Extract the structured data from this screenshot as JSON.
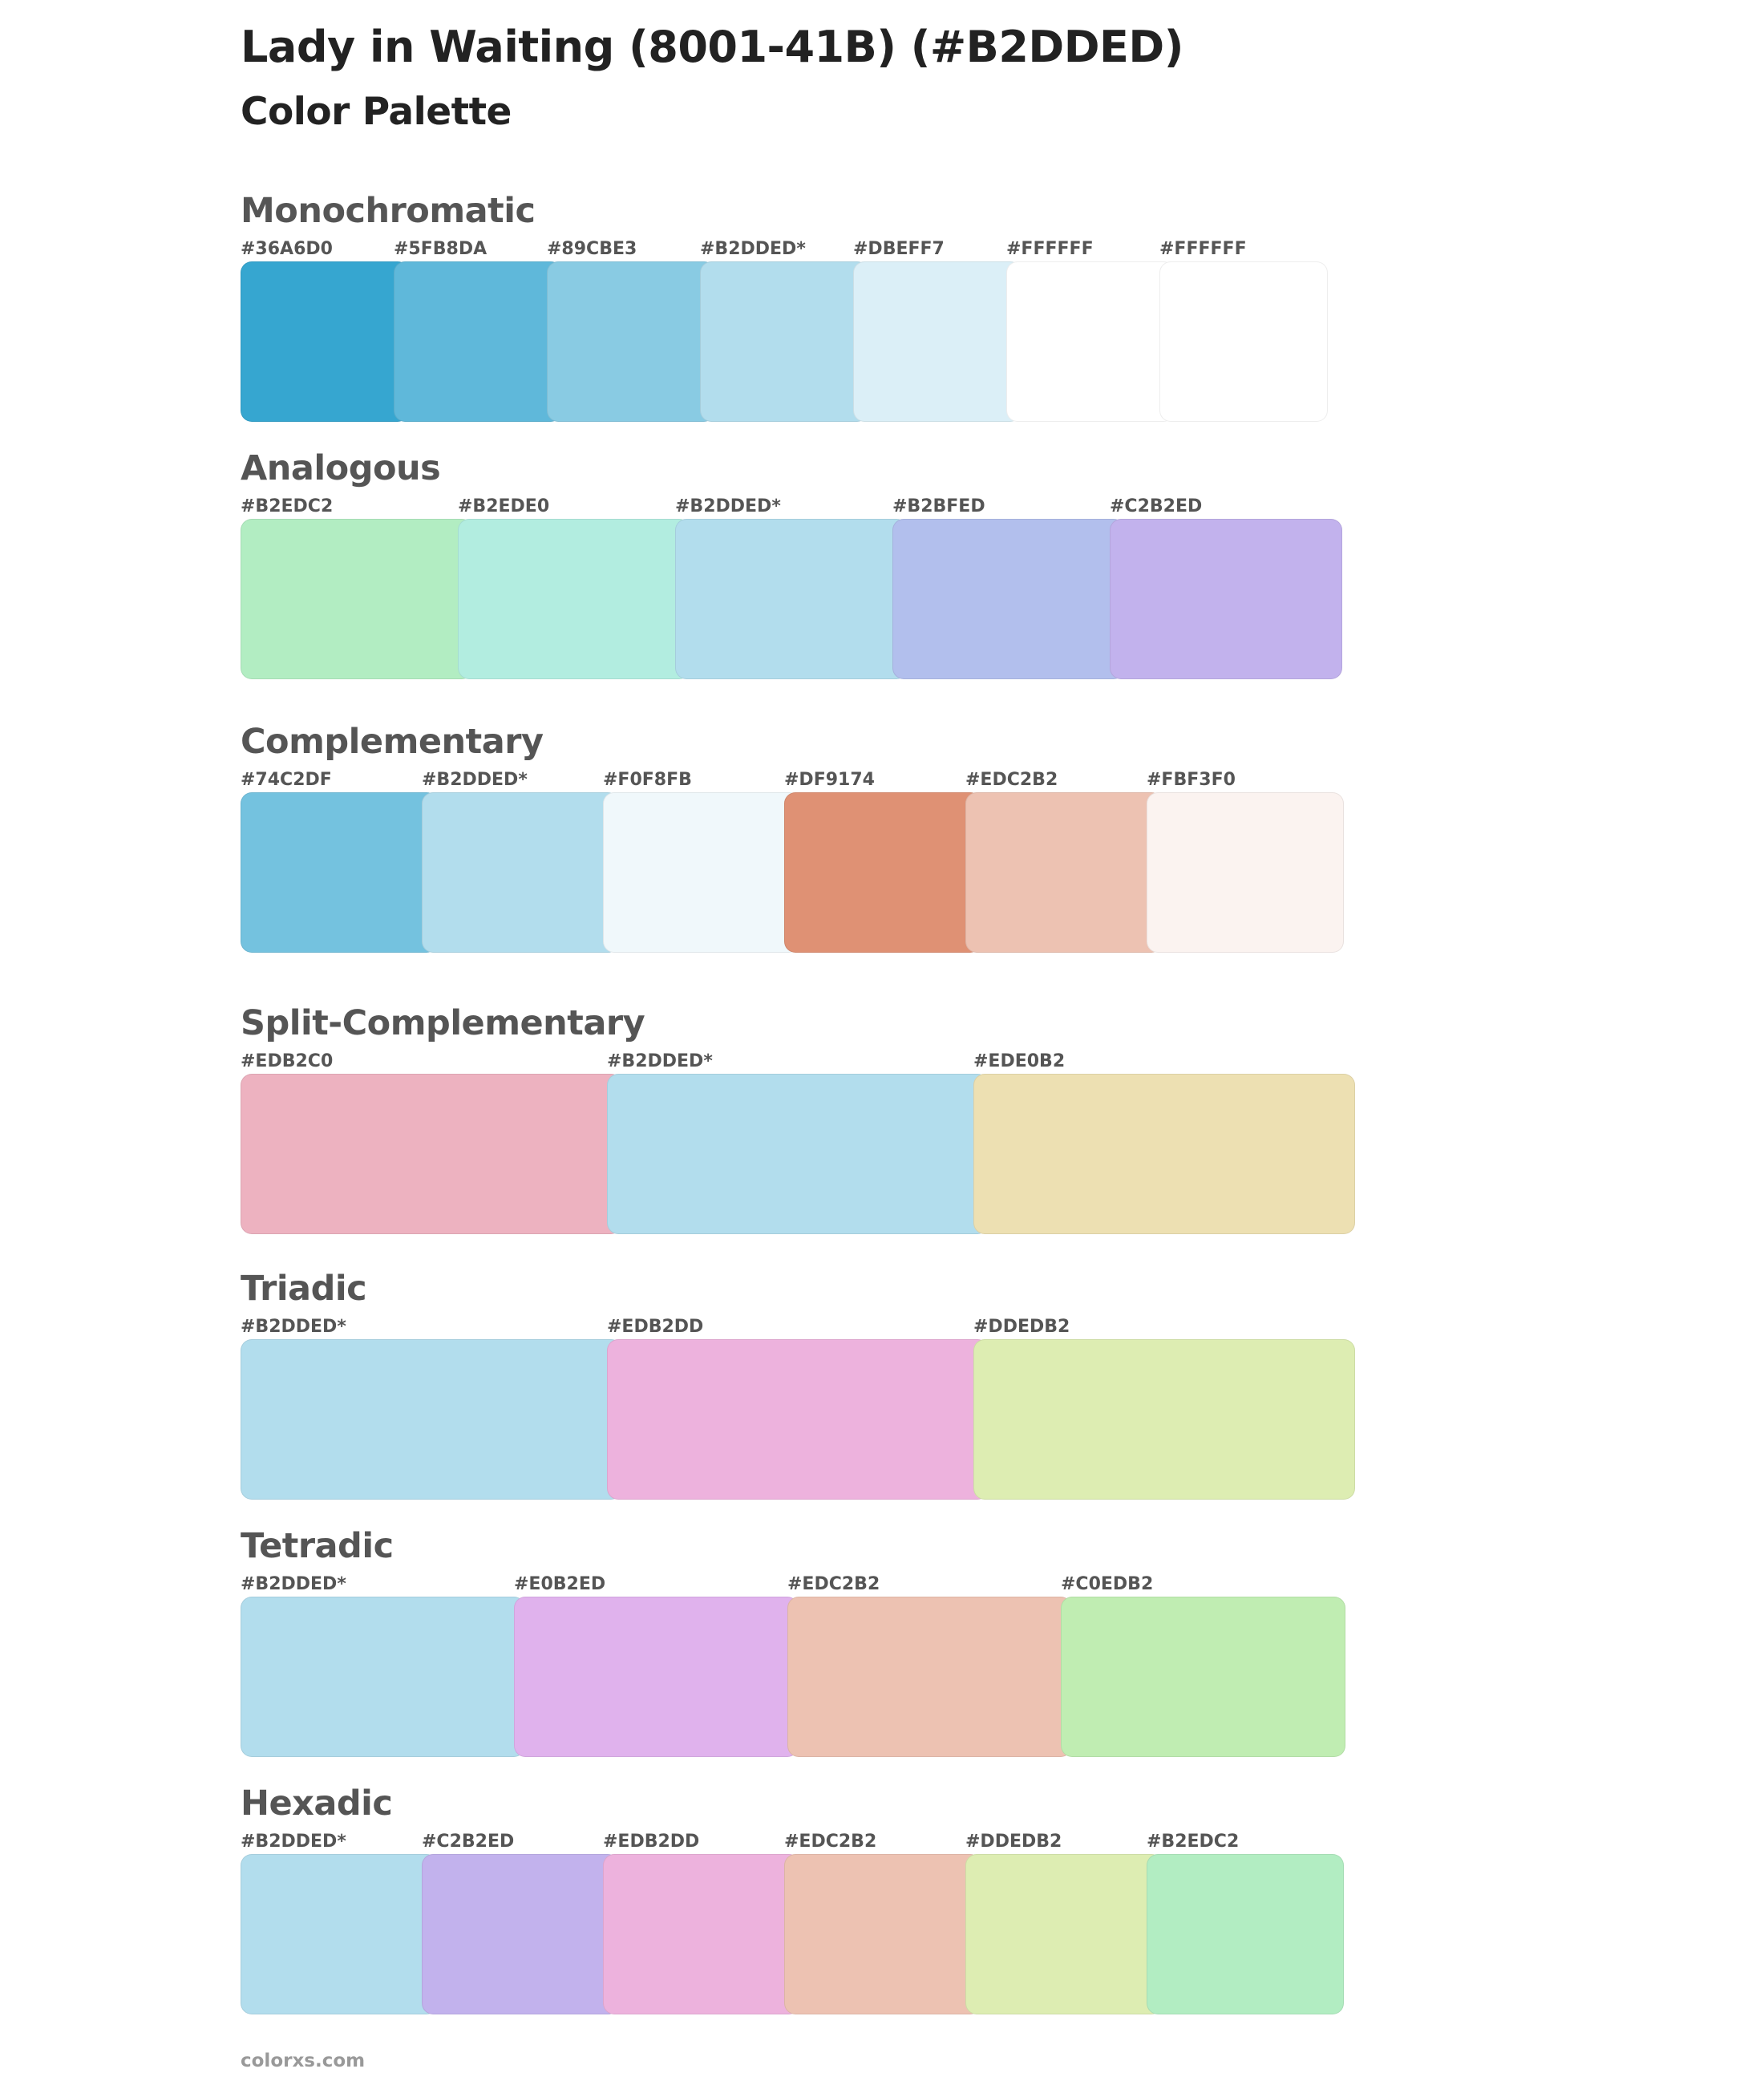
{
  "header": {
    "title": "Lady in Waiting (8001-41B) (#B2DDED)",
    "subtitle": "Color Palette"
  },
  "palettes": [
    {
      "name": "Monochromatic",
      "colors": [
        {
          "label": "#36A6D0",
          "hex": "#36A6D0"
        },
        {
          "label": "#5FB8DA",
          "hex": "#5FB8DA"
        },
        {
          "label": "#89CBE3",
          "hex": "#89CBE3"
        },
        {
          "label": "#B2DDED*",
          "hex": "#B2DDED"
        },
        {
          "label": "#DBEFF7",
          "hex": "#DBEFF7"
        },
        {
          "label": "#FFFFFF",
          "hex": "#FFFFFF"
        },
        {
          "label": "#FFFFFF",
          "hex": "#FFFFFF"
        }
      ]
    },
    {
      "name": "Analogous",
      "colors": [
        {
          "label": "#B2EDC2",
          "hex": "#B2EDC2"
        },
        {
          "label": "#B2EDE0",
          "hex": "#B2EDE0"
        },
        {
          "label": "#B2DDED*",
          "hex": "#B2DDED"
        },
        {
          "label": "#B2BFED",
          "hex": "#B2BFED"
        },
        {
          "label": "#C2B2ED",
          "hex": "#C2B2ED"
        }
      ]
    },
    {
      "name": "Complementary",
      "colors": [
        {
          "label": "#74C2DF",
          "hex": "#74C2DF"
        },
        {
          "label": "#B2DDED*",
          "hex": "#B2DDED"
        },
        {
          "label": "#F0F8FB",
          "hex": "#F0F8FB"
        },
        {
          "label": "#DF9174",
          "hex": "#DF9174"
        },
        {
          "label": "#EDC2B2",
          "hex": "#EDC2B2"
        },
        {
          "label": "#FBF3F0",
          "hex": "#FBF3F0"
        }
      ]
    },
    {
      "name": "Split-Complementary",
      "colors": [
        {
          "label": "#EDB2C0",
          "hex": "#EDB2C0"
        },
        {
          "label": "#B2DDED*",
          "hex": "#B2DDED"
        },
        {
          "label": "#EDE0B2",
          "hex": "#EDE0B2"
        }
      ]
    },
    {
      "name": "Triadic",
      "colors": [
        {
          "label": "#B2DDED*",
          "hex": "#B2DDED"
        },
        {
          "label": "#EDB2DD",
          "hex": "#EDB2DD"
        },
        {
          "label": "#DDEDB2",
          "hex": "#DDEDB2"
        }
      ]
    },
    {
      "name": "Tetradic",
      "colors": [
        {
          "label": "#B2DDED*",
          "hex": "#B2DDED"
        },
        {
          "label": "#E0B2ED",
          "hex": "#E0B2ED"
        },
        {
          "label": "#EDC2B2",
          "hex": "#EDC2B2"
        },
        {
          "label": "#C0EDB2",
          "hex": "#C0EDB2"
        }
      ]
    },
    {
      "name": "Hexadic",
      "colors": [
        {
          "label": "#B2DDED*",
          "hex": "#B2DDED"
        },
        {
          "label": "#C2B2ED",
          "hex": "#C2B2ED"
        },
        {
          "label": "#EDB2DD",
          "hex": "#EDB2DD"
        },
        {
          "label": "#EDC2B2",
          "hex": "#EDC2B2"
        },
        {
          "label": "#DDEDB2",
          "hex": "#DDEDB2"
        },
        {
          "label": "#B2EDC2",
          "hex": "#B2EDC2"
        }
      ]
    }
  ],
  "footer": {
    "text": "colorxs.com"
  }
}
